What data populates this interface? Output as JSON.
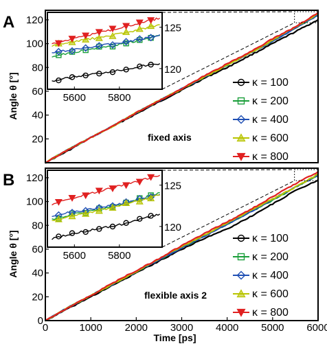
{
  "chart_data": [
    {
      "type": "line",
      "panel_label": "A",
      "annotation": "fixed axis",
      "ylabel": "Angle θ [°]",
      "xlabel": "",
      "xlim": [
        0,
        6000
      ],
      "ylim": [
        0,
        128
      ],
      "x_ticks": [],
      "y_ticks": [
        20,
        40,
        60,
        80,
        100,
        120
      ],
      "grid": false,
      "legend_position": "bottom-right",
      "series": [
        {
          "name": "κ = 100",
          "color": "#000000",
          "marker": "circle",
          "x": [
            0,
            500,
            1000,
            1500,
            2000,
            2500,
            3000,
            3500,
            4000,
            4500,
            5000,
            5500,
            6000
          ],
          "y": [
            0,
            10,
            21,
            31,
            41,
            51,
            61,
            71,
            80,
            90,
            100,
            110,
            120
          ]
        },
        {
          "name": "κ = 200",
          "color": "#1a9e3a",
          "marker": "square",
          "x": [
            0,
            500,
            1000,
            1500,
            2000,
            2500,
            3000,
            3500,
            4000,
            4500,
            5000,
            5500,
            6000
          ],
          "y": [
            0,
            11,
            21,
            31,
            42,
            52,
            62,
            72,
            82,
            92,
            102,
            113,
            124
          ]
        },
        {
          "name": "κ = 400",
          "color": "#1f4fb4",
          "marker": "diamond",
          "x": [
            0,
            500,
            1000,
            1500,
            2000,
            2500,
            3000,
            3500,
            4000,
            4500,
            5000,
            5500,
            6000
          ],
          "y": [
            0,
            11,
            21,
            31,
            42,
            52,
            62,
            72,
            82,
            92,
            102,
            113,
            124
          ]
        },
        {
          "name": "κ = 600",
          "color": "#b8c400",
          "marker": "triangle",
          "x": [
            0,
            500,
            1000,
            1500,
            2000,
            2500,
            3000,
            3500,
            4000,
            4500,
            5000,
            5500,
            6000
          ],
          "y": [
            0,
            11,
            21,
            31,
            42,
            52,
            62,
            72,
            82,
            92,
            103,
            114,
            125
          ]
        },
        {
          "name": "κ = 800",
          "color": "#e02020",
          "marker": "triangle-down",
          "x": [
            0,
            500,
            1000,
            1500,
            2000,
            2500,
            3000,
            3500,
            4000,
            4500,
            5000,
            5500,
            6000
          ],
          "y": [
            0,
            11,
            21,
            31,
            42,
            52,
            62,
            73,
            83,
            93,
            104,
            114,
            126
          ]
        }
      ],
      "inset": {
        "xlim": [
          5480,
          5990
        ],
        "ylim": [
          117.5,
          126.8
        ],
        "x_ticks": [
          5600,
          5800
        ],
        "y_ticks": [
          120,
          125
        ],
        "series": [
          {
            "name": "κ = 100",
            "x": [
              5500,
              5600,
              5700,
              5800,
              5900,
              5980
            ],
            "y": [
              118.5,
              119.0,
              119.4,
              119.8,
              120.3,
              120.6
            ]
          },
          {
            "name": "κ = 200",
            "x": [
              5500,
              5600,
              5700,
              5800,
              5900,
              5980
            ],
            "y": [
              121.5,
              122.0,
              122.5,
              122.9,
              123.5,
              124.0
            ]
          },
          {
            "name": "κ = 400",
            "x": [
              5500,
              5600,
              5700,
              5800,
              5900,
              5980
            ],
            "y": [
              121.9,
              122.3,
              122.7,
              123.1,
              123.6,
              124.1
            ]
          },
          {
            "name": "κ = 600",
            "x": [
              5500,
              5600,
              5700,
              5800,
              5900,
              5980
            ],
            "y": [
              122.8,
              123.3,
              123.7,
              124.2,
              124.8,
              125.3
            ]
          },
          {
            "name": "κ = 800",
            "x": [
              5500,
              5600,
              5700,
              5800,
              5900,
              5980
            ],
            "y": [
              123.0,
              123.7,
              124.3,
              124.9,
              125.6,
              126.1
            ]
          }
        ]
      }
    },
    {
      "type": "line",
      "panel_label": "B",
      "annotation": "flexible axis 2",
      "ylabel": "Angle θ [°]",
      "xlabel": "Time [ps]",
      "xlim": [
        0,
        6000
      ],
      "ylim": [
        0,
        128
      ],
      "x_ticks": [
        0,
        1000,
        2000,
        3000,
        4000,
        5000,
        6000
      ],
      "y_ticks": [
        0,
        20,
        40,
        60,
        80,
        100,
        120
      ],
      "grid": false,
      "legend_position": "bottom-right",
      "series": [
        {
          "name": "κ = 100",
          "color": "#000000",
          "marker": "circle",
          "x": [
            0,
            500,
            1000,
            1500,
            2000,
            2500,
            3000,
            3500,
            4000,
            4500,
            5000,
            5500,
            6000
          ],
          "y": [
            0,
            10,
            20,
            30,
            40,
            50,
            60,
            69,
            77,
            87,
            98,
            109,
            118
          ]
        },
        {
          "name": "κ = 200",
          "color": "#1a9e3a",
          "marker": "square",
          "x": [
            0,
            500,
            1000,
            1500,
            2000,
            2500,
            3000,
            3500,
            4000,
            4500,
            5000,
            5500,
            6000
          ],
          "y": [
            0,
            11,
            21,
            31,
            41,
            51,
            61,
            71,
            81,
            91,
            101,
            112,
            122
          ]
        },
        {
          "name": "κ = 400",
          "color": "#1f4fb4",
          "marker": "diamond",
          "x": [
            0,
            500,
            1000,
            1500,
            2000,
            2500,
            3000,
            3500,
            4000,
            4500,
            5000,
            5500,
            6000
          ],
          "y": [
            0,
            11,
            21,
            31,
            41,
            51,
            61,
            71,
            81,
            91,
            102,
            112,
            122
          ]
        },
        {
          "name": "κ = 600",
          "color": "#b8c400",
          "marker": "triangle",
          "x": [
            0,
            500,
            1000,
            1500,
            2000,
            2500,
            3000,
            3500,
            4000,
            4500,
            5000,
            5500,
            6000
          ],
          "y": [
            0,
            11,
            21,
            31,
            41,
            52,
            62,
            72,
            82,
            92,
            102,
            112,
            123
          ]
        },
        {
          "name": "κ = 800",
          "color": "#e02020",
          "marker": "triangle-down",
          "x": [
            0,
            500,
            1000,
            1500,
            2000,
            2500,
            3000,
            3500,
            4000,
            4500,
            5000,
            5500,
            6000
          ],
          "y": [
            0,
            11,
            21,
            32,
            42,
            52,
            63,
            73,
            83,
            93,
            104,
            115,
            125
          ]
        }
      ],
      "inset": {
        "xlim": [
          5480,
          5990
        ],
        "ylim": [
          117.5,
          126.8
        ],
        "x_ticks": [
          5600,
          5800
        ],
        "y_ticks": [
          120,
          125
        ],
        "series": [
          {
            "name": "κ = 100",
            "x": [
              5500,
              5600,
              5700,
              5800,
              5900,
              5980
            ],
            "y": [
              118.5,
              119.2,
              119.7,
              120.2,
              120.9,
              121.5
            ]
          },
          {
            "name": "κ = 200",
            "x": [
              5500,
              5600,
              5700,
              5800,
              5900,
              5980
            ],
            "y": [
              120.9,
              121.5,
              122.0,
              122.6,
              123.4,
              124.1
            ]
          },
          {
            "name": "κ = 400",
            "x": [
              5500,
              5600,
              5700,
              5800,
              5900,
              5980
            ],
            "y": [
              121.3,
              121.8,
              122.2,
              122.7,
              123.3,
              123.9
            ]
          },
          {
            "name": "κ = 600",
            "x": [
              5500,
              5600,
              5700,
              5800,
              5900,
              5980
            ],
            "y": [
              120.7,
              121.3,
              121.9,
              122.5,
              123.2,
              123.8
            ]
          },
          {
            "name": "κ = 800",
            "x": [
              5500,
              5600,
              5700,
              5800,
              5900,
              5980
            ],
            "y": [
              122.7,
              123.5,
              124.2,
              124.9,
              125.6,
              126.2
            ]
          }
        ]
      }
    }
  ]
}
